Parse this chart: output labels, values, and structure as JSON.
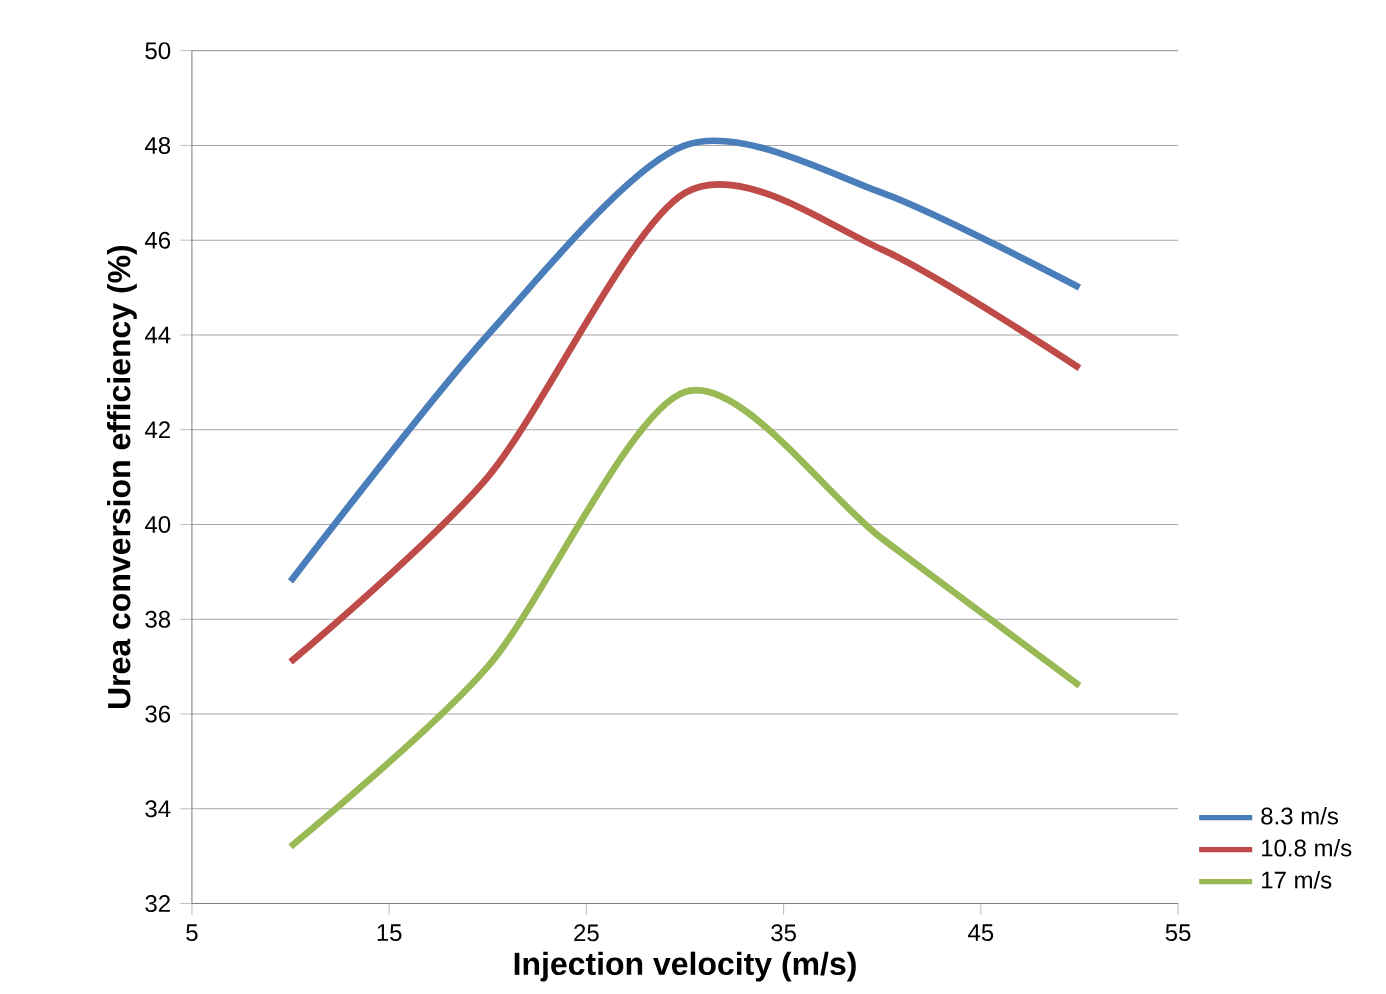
{
  "chart_data": {
    "type": "line",
    "xlabel": "Injection velocity (m/s)",
    "ylabel": "Urea conversion efficiency (%)",
    "x": [
      10,
      20,
      30,
      40,
      50
    ],
    "series": [
      {
        "name": "8.3 m/s",
        "color": "#4a7ebb",
        "values": [
          38.8,
          44.0,
          48.0,
          47.0,
          45.0
        ]
      },
      {
        "name": "10.8 m/s",
        "color": "#be4b48",
        "values": [
          37.1,
          41.0,
          47.0,
          45.8,
          43.3
        ]
      },
      {
        "name": "17 m/s",
        "color": "#98b954",
        "values": [
          33.2,
          37.0,
          42.8,
          39.7,
          36.6
        ]
      }
    ],
    "xlim": [
      5,
      55
    ],
    "xticks": [
      5,
      15,
      25,
      35,
      45,
      55
    ],
    "ylim": [
      32,
      50
    ],
    "yticks": [
      32,
      34,
      36,
      38,
      40,
      42,
      44,
      46,
      48,
      50
    ],
    "grid": "y",
    "legend": "right",
    "line_style": "solid"
  }
}
